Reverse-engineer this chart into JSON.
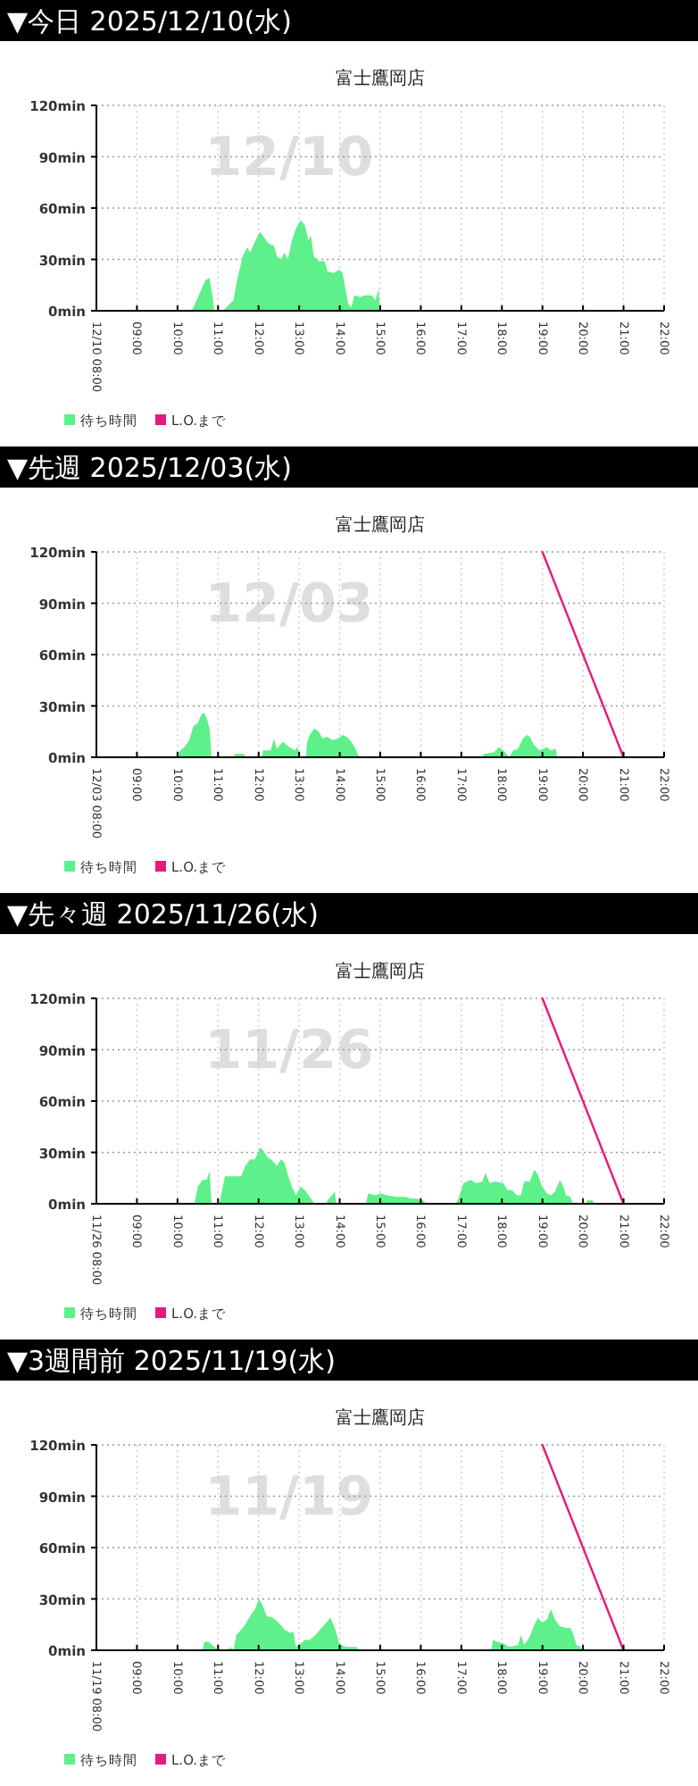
{
  "chart_data": [
    {
      "type": "area",
      "title": "▼今日 2025/12/10(水)",
      "subtitle": "富士鷹岡店",
      "annotations": [
        "12/10"
      ],
      "xlim": [
        8,
        22
      ],
      "xticks": [
        {
          "value": 8,
          "label": "12/10 08:00"
        },
        {
          "value": 9,
          "label": "09:00"
        },
        {
          "value": 10,
          "label": "10:00"
        },
        {
          "value": 11,
          "label": "11:00"
        },
        {
          "value": 12,
          "label": "12:00"
        },
        {
          "value": 13,
          "label": "13:00"
        },
        {
          "value": 14,
          "label": "14:00"
        },
        {
          "value": 15,
          "label": "15:00"
        },
        {
          "value": 16,
          "label": "16:00"
        },
        {
          "value": 17,
          "label": "17:00"
        },
        {
          "value": 18,
          "label": "18:00"
        },
        {
          "value": 19,
          "label": "19:00"
        },
        {
          "value": 20,
          "label": "20:00"
        },
        {
          "value": 21,
          "label": "21:00"
        },
        {
          "value": 22,
          "label": "22:00"
        }
      ],
      "ylim": [
        0,
        120
      ],
      "yticks": [
        {
          "value": 0,
          "label": "0min"
        },
        {
          "value": 30,
          "label": "30min"
        },
        {
          "value": 60,
          "label": "60min"
        },
        {
          "value": 90,
          "label": "90min"
        },
        {
          "value": 120,
          "label": "120min"
        }
      ],
      "grid": true,
      "legend": "bottom",
      "series": [
        {
          "name": "待ち時間",
          "color": "#5ef08a",
          "x": [
            10.35,
            10.47,
            10.69,
            10.79,
            10.86,
            10.91,
            11.13,
            11.2,
            11.38,
            11.47,
            11.61,
            11.72,
            11.79,
            11.94,
            12.04,
            12.16,
            12.26,
            12.38,
            12.45,
            12.55,
            12.64,
            12.72,
            12.82,
            12.92,
            13.04,
            13.14,
            13.23,
            13.29,
            13.36,
            13.48,
            13.63,
            13.7,
            13.85,
            13.99,
            14.07,
            14.14,
            14.21,
            14.29,
            14.36,
            14.51,
            14.61,
            14.8,
            14.88,
            14.96,
            14.99
          ],
          "values": [
            0,
            6,
            18,
            19,
            9,
            0,
            0,
            2,
            6,
            18,
            32,
            37,
            34,
            42,
            46,
            42,
            39,
            38,
            32,
            30,
            34,
            30,
            41,
            48,
            53,
            50,
            41,
            44,
            32,
            29,
            29,
            23,
            22,
            24,
            22,
            13,
            4,
            2,
            9,
            8,
            9,
            9,
            6,
            13,
            0
          ]
        },
        {
          "name": "L.O.まで",
          "type": "line",
          "color": "#e6197e"
        }
      ]
    },
    {
      "type": "area",
      "title": "▼先週 2025/12/03(水)",
      "subtitle": "富士鷹岡店",
      "annotations": [
        "12/03"
      ],
      "xlim": [
        8,
        22
      ],
      "xticks": [
        {
          "value": 8,
          "label": "12/03 08:00"
        },
        {
          "value": 9,
          "label": "09:00"
        },
        {
          "value": 10,
          "label": "10:00"
        },
        {
          "value": 11,
          "label": "11:00"
        },
        {
          "value": 12,
          "label": "12:00"
        },
        {
          "value": 13,
          "label": "13:00"
        },
        {
          "value": 14,
          "label": "14:00"
        },
        {
          "value": 15,
          "label": "15:00"
        },
        {
          "value": 16,
          "label": "16:00"
        },
        {
          "value": 17,
          "label": "17:00"
        },
        {
          "value": 18,
          "label": "18:00"
        },
        {
          "value": 19,
          "label": "19:00"
        },
        {
          "value": 20,
          "label": "20:00"
        },
        {
          "value": 21,
          "label": "21:00"
        },
        {
          "value": 22,
          "label": "22:00"
        }
      ],
      "ylim": [
        0,
        120
      ],
      "yticks": [
        {
          "value": 0,
          "label": "0min"
        },
        {
          "value": 30,
          "label": "30min"
        },
        {
          "value": 60,
          "label": "60min"
        },
        {
          "value": 90,
          "label": "90min"
        },
        {
          "value": 120,
          "label": "120min"
        }
      ],
      "grid": true,
      "legend": "bottom",
      "series": [
        {
          "name": "待ち時間",
          "color": "#5ef08a",
          "x": [
            9.98,
            10.03,
            10.17,
            10.29,
            10.39,
            10.5,
            10.59,
            10.66,
            10.73,
            10.79,
            10.84,
            11.4,
            11.42,
            11.64,
            11.67,
            12.08,
            12.11,
            12.3,
            12.38,
            12.45,
            12.6,
            12.75,
            12.89,
            12.97,
            13.01,
            13.17,
            13.19,
            13.26,
            13.38,
            13.48,
            13.58,
            13.7,
            13.82,
            13.96,
            14.07,
            14.17,
            14.29,
            14.41,
            14.48,
            17.52,
            17.55,
            17.81,
            17.93,
            18.08,
            18.18,
            18.28,
            18.4,
            18.52,
            18.62,
            18.69,
            18.77,
            18.92,
            19.02,
            19.11,
            19.21,
            19.33,
            19.36
          ],
          "values": [
            0,
            3,
            6,
            10,
            18,
            20,
            25,
            26,
            22,
            17,
            0,
            0,
            2,
            2,
            0,
            0,
            4,
            4,
            11,
            5,
            9,
            6,
            4,
            6,
            0,
            0,
            8,
            13,
            17,
            15,
            11,
            12,
            10,
            11,
            13,
            12,
            9,
            4,
            0,
            0,
            2,
            3,
            6,
            3,
            0,
            4,
            5,
            11,
            13,
            12,
            8,
            4,
            5,
            6,
            4,
            5,
            0
          ]
        },
        {
          "name": "L.O.まで",
          "type": "line",
          "color": "#e6197e",
          "x": [
            19,
            21
          ],
          "values": [
            120,
            0
          ]
        }
      ]
    },
    {
      "type": "area",
      "title": "▼先々週 2025/11/26(水)",
      "subtitle": "富士鷹岡店",
      "annotations": [
        "11/26"
      ],
      "xlim": [
        8,
        22
      ],
      "xticks": [
        {
          "value": 8,
          "label": "11/26 08:00"
        },
        {
          "value": 9,
          "label": "09:00"
        },
        {
          "value": 10,
          "label": "10:00"
        },
        {
          "value": 11,
          "label": "11:00"
        },
        {
          "value": 12,
          "label": "12:00"
        },
        {
          "value": 13,
          "label": "13:00"
        },
        {
          "value": 14,
          "label": "14:00"
        },
        {
          "value": 15,
          "label": "15:00"
        },
        {
          "value": 16,
          "label": "16:00"
        },
        {
          "value": 17,
          "label": "17:00"
        },
        {
          "value": 18,
          "label": "18:00"
        },
        {
          "value": 19,
          "label": "19:00"
        },
        {
          "value": 20,
          "label": "20:00"
        },
        {
          "value": 21,
          "label": "21:00"
        },
        {
          "value": 22,
          "label": "22:00"
        }
      ],
      "ylim": [
        0,
        120
      ],
      "yticks": [
        {
          "value": 0,
          "label": "0min"
        },
        {
          "value": 30,
          "label": "30min"
        },
        {
          "value": 60,
          "label": "60min"
        },
        {
          "value": 90,
          "label": "90min"
        },
        {
          "value": 120,
          "label": "120min"
        }
      ],
      "grid": true,
      "legend": "bottom",
      "series": [
        {
          "name": "待ち時間",
          "color": "#5ef08a",
          "x": [
            10.42,
            10.5,
            10.62,
            10.72,
            10.79,
            10.84,
            11.03,
            11.17,
            11.42,
            11.57,
            11.67,
            11.79,
            11.91,
            12.04,
            12.11,
            12.23,
            12.35,
            12.45,
            12.55,
            12.64,
            12.72,
            12.82,
            12.92,
            13.04,
            13.14,
            13.26,
            13.38,
            13.67,
            13.7,
            13.88,
            13.92,
            14.65,
            14.7,
            14.88,
            15.02,
            15.17,
            15.39,
            15.61,
            15.76,
            15.9,
            16.05,
            16.15,
            16.86,
            16.93,
            17.05,
            17.23,
            17.37,
            17.52,
            17.59,
            17.7,
            17.84,
            18.03,
            18.14,
            18.25,
            18.37,
            18.47,
            18.55,
            18.69,
            18.8,
            18.89,
            18.99,
            19.11,
            19.21,
            19.31,
            19.43,
            19.5,
            19.58,
            19.69,
            19.75,
            20.09,
            20.1,
            20.24,
            20.27
          ],
          "values": [
            0,
            10,
            14,
            14,
            19,
            0,
            0,
            16,
            16,
            16,
            22,
            26,
            26,
            33,
            31,
            27,
            25,
            22,
            26,
            24,
            17,
            10,
            5,
            10,
            8,
            4,
            0,
            0,
            2,
            7,
            0,
            0,
            6,
            5,
            6,
            5,
            4,
            4,
            3,
            3,
            2,
            0,
            0,
            3,
            12,
            14,
            12,
            13,
            18,
            12,
            13,
            12,
            8,
            8,
            5,
            5,
            13,
            13,
            20,
            17,
            10,
            6,
            5,
            7,
            14,
            11,
            5,
            4,
            0,
            0,
            2,
            2,
            0
          ]
        },
        {
          "name": "L.O.まで",
          "type": "line",
          "color": "#e6197e",
          "x": [
            19,
            21
          ],
          "values": [
            120,
            0
          ]
        }
      ]
    },
    {
      "type": "area",
      "title": "▼3週間前 2025/11/19(水)",
      "subtitle": "富士鷹岡店",
      "annotations": [
        "11/19"
      ],
      "xlim": [
        8,
        22
      ],
      "xticks": [
        {
          "value": 8,
          "label": "11/19 08:00"
        },
        {
          "value": 9,
          "label": "09:00"
        },
        {
          "value": 10,
          "label": "10:00"
        },
        {
          "value": 11,
          "label": "11:00"
        },
        {
          "value": 12,
          "label": "12:00"
        },
        {
          "value": 13,
          "label": "13:00"
        },
        {
          "value": 14,
          "label": "14:00"
        },
        {
          "value": 15,
          "label": "15:00"
        },
        {
          "value": 16,
          "label": "16:00"
        },
        {
          "value": 17,
          "label": "17:00"
        },
        {
          "value": 18,
          "label": "18:00"
        },
        {
          "value": 19,
          "label": "19:00"
        },
        {
          "value": 20,
          "label": "20:00"
        },
        {
          "value": 21,
          "label": "21:00"
        },
        {
          "value": 22,
          "label": "22:00"
        }
      ],
      "ylim": [
        0,
        120
      ],
      "yticks": [
        {
          "value": 0,
          "label": "0min"
        },
        {
          "value": 30,
          "label": "30min"
        },
        {
          "value": 60,
          "label": "60min"
        },
        {
          "value": 90,
          "label": "90min"
        },
        {
          "value": 120,
          "label": "120min"
        }
      ],
      "grid": true,
      "legend": "bottom",
      "series": [
        {
          "name": "待ち時間",
          "color": "#5ef08a",
          "x": [
            10.62,
            10.66,
            10.76,
            10.91,
            11.03,
            11.25,
            11.29,
            11.38,
            11.45,
            11.57,
            11.67,
            11.79,
            11.91,
            12.01,
            12.08,
            12.2,
            12.35,
            12.5,
            12.64,
            12.79,
            12.86,
            12.92,
            13.04,
            13.14,
            13.26,
            13.41,
            13.55,
            13.7,
            13.77,
            13.88,
            13.99,
            14.14,
            14.41,
            14.48,
            17.74,
            17.78,
            17.89,
            18.03,
            18.18,
            18.4,
            18.47,
            18.55,
            18.69,
            18.8,
            18.89,
            18.99,
            19.11,
            19.21,
            19.31,
            19.43,
            19.58,
            19.69,
            19.75,
            19.84,
            19.94,
            19.99
          ],
          "values": [
            0,
            5,
            5,
            2,
            0,
            0,
            2,
            0,
            9,
            12,
            15,
            20,
            24,
            30,
            27,
            20,
            19,
            16,
            12,
            10,
            11,
            2,
            4,
            6,
            6,
            9,
            13,
            17,
            19,
            13,
            4,
            2,
            2,
            0,
            0,
            6,
            5,
            4,
            2,
            3,
            9,
            3,
            8,
            15,
            19,
            16,
            18,
            24,
            18,
            14,
            13,
            13,
            10,
            3,
            2,
            0
          ]
        },
        {
          "name": "L.O.まで",
          "type": "line",
          "color": "#e6197e",
          "x": [
            19,
            21
          ],
          "values": [
            120,
            0
          ]
        }
      ]
    }
  ]
}
